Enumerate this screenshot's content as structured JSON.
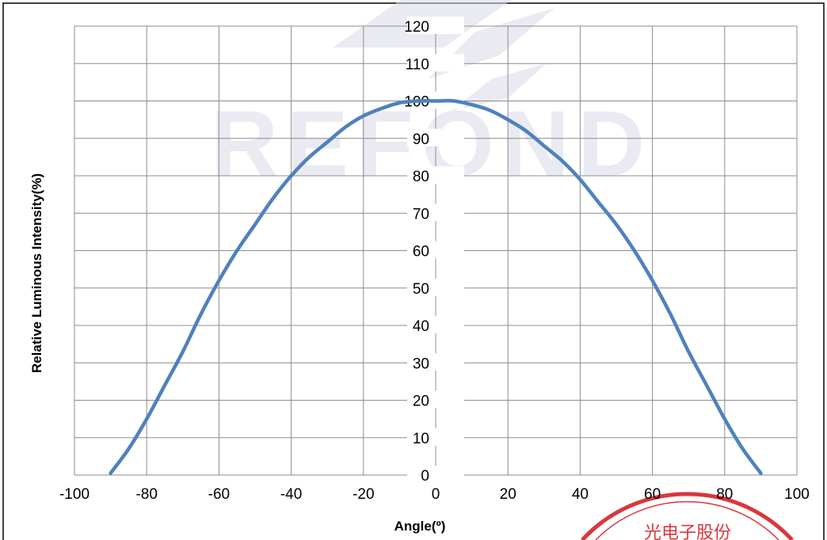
{
  "chart_data": {
    "type": "line",
    "title": "",
    "xlabel": "Angle(º)",
    "ylabel": "Relative Luminous Intensity(%)",
    "xlim": [
      -100,
      100
    ],
    "ylim": [
      0,
      120
    ],
    "xticks": [
      -100,
      -80,
      -60,
      -40,
      -20,
      0,
      20,
      40,
      60,
      80,
      100
    ],
    "yticks": [
      0,
      10,
      20,
      30,
      40,
      50,
      60,
      70,
      80,
      90,
      100,
      110,
      120
    ],
    "grid": true,
    "legend": "none",
    "series": [
      {
        "color": "#4f81bd",
        "x": [
          -90,
          -85,
          -80,
          -75,
          -70,
          -65,
          -60,
          -55,
          -50,
          -45,
          -40,
          -35,
          -30,
          -25,
          -20,
          -15,
          -10,
          -5,
          0,
          5,
          10,
          15,
          20,
          25,
          30,
          35,
          40,
          45,
          50,
          55,
          60,
          65,
          70,
          75,
          80,
          85,
          90
        ],
        "y": [
          0.5,
          7,
          15,
          24,
          33,
          43,
          52,
          60,
          67,
          74,
          80,
          85,
          89,
          93,
          96,
          98,
          99.5,
          100,
          100,
          100,
          99,
          97.5,
          95,
          92,
          88,
          84,
          79,
          73,
          67,
          60,
          52,
          43,
          33,
          24,
          15,
          7,
          0.5
        ]
      }
    ]
  },
  "watermark": {
    "text": "REFOND",
    "color": "#d9dce8"
  },
  "stamp": {
    "text": "光电子股份",
    "color": "#d9363e"
  }
}
